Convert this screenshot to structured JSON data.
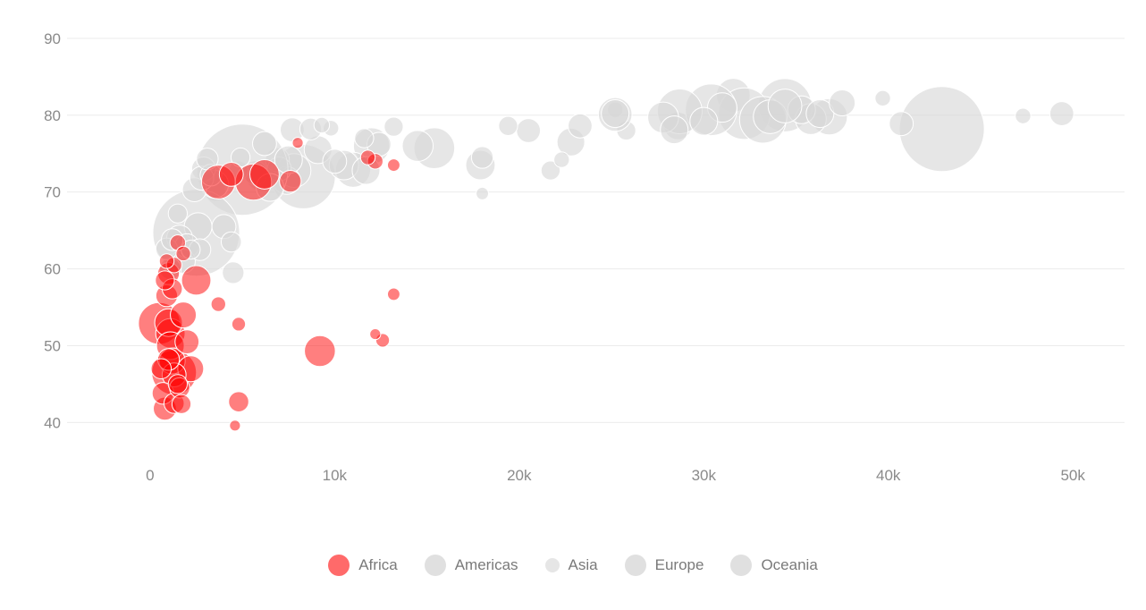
{
  "chart_data": {
    "type": "scatter",
    "x_ticks": [
      0,
      10000,
      20000,
      30000,
      40000,
      50000
    ],
    "x_tick_labels": [
      "0",
      "10k",
      "20k",
      "30k",
      "40k",
      "50k"
    ],
    "y_ticks": [
      40,
      50,
      60,
      70,
      80,
      90
    ],
    "y_tick_labels": [
      "40",
      "50",
      "60",
      "70",
      "80",
      "90"
    ],
    "xlim": [
      -4500,
      52800
    ],
    "ylim": [
      36.2,
      91.5
    ],
    "grid": true,
    "legend_position": "bottom",
    "series": [
      {
        "name": "Africa",
        "color": "#ff0000",
        "points": [
          [
            1300,
            46.5,
            1.0
          ],
          [
            500,
            52.9,
            0.85
          ],
          [
            1100,
            51.6,
            0.35
          ],
          [
            1000,
            53.0,
            0.3
          ],
          [
            1800,
            54.0,
            0.25
          ],
          [
            2500,
            58.5,
            0.35
          ],
          [
            1000,
            59.4,
            0.15
          ],
          [
            900,
            56.5,
            0.15
          ],
          [
            1200,
            57.4,
            0.12
          ],
          [
            800,
            58.5,
            0.1
          ],
          [
            1100,
            50.0,
            0.3
          ],
          [
            1200,
            48.0,
            0.25
          ],
          [
            1300,
            46.2,
            0.2
          ],
          [
            1000,
            48.2,
            0.15
          ],
          [
            700,
            43.8,
            0.15
          ],
          [
            1300,
            42.5,
            0.12
          ],
          [
            800,
            41.8,
            0.18
          ],
          [
            1600,
            44.5,
            0.12
          ],
          [
            600,
            47.0,
            0.12
          ],
          [
            1500,
            45.0,
            0.1
          ],
          [
            1700,
            42.4,
            0.1
          ],
          [
            4800,
            42.7,
            0.12
          ],
          [
            9200,
            49.3,
            0.4
          ],
          [
            3700,
            55.4,
            0.04
          ],
          [
            4800,
            52.8,
            0.03
          ],
          [
            12600,
            50.7,
            0.03
          ],
          [
            12200,
            51.5,
            0.01
          ],
          [
            13200,
            56.7,
            0.02
          ],
          [
            4600,
            39.6,
            0.01
          ],
          [
            5600,
            71.3,
            0.6
          ],
          [
            6200,
            72.3,
            0.35
          ],
          [
            3700,
            71.3,
            0.5
          ],
          [
            4400,
            72.3,
            0.2
          ],
          [
            7600,
            71.4,
            0.15
          ],
          [
            8000,
            76.4,
            0.01
          ],
          [
            12200,
            74.0,
            0.05
          ],
          [
            11800,
            74.5,
            0.04
          ],
          [
            13200,
            73.5,
            0.02
          ],
          [
            1500,
            63.4,
            0.05
          ],
          [
            1300,
            60.5,
            0.05
          ],
          [
            1800,
            62.0,
            0.04
          ],
          [
            900,
            61.0,
            0.04
          ],
          [
            2000,
            50.5,
            0.2
          ],
          [
            2200,
            47.0,
            0.25
          ]
        ]
      },
      {
        "name": "Americas",
        "color": "#d7d7d7",
        "points": [
          [
            42900,
            78.2,
            4.3
          ],
          [
            8300,
            72.0,
            2.3
          ],
          [
            12000,
            76.0,
            0.6
          ],
          [
            11000,
            72.9,
            0.55
          ],
          [
            7800,
            72.8,
            0.5
          ],
          [
            6000,
            72.2,
            0.4
          ],
          [
            9100,
            75.5,
            0.3
          ],
          [
            10500,
            73.5,
            0.35
          ],
          [
            13200,
            78.5,
            0.1
          ],
          [
            5700,
            72.5,
            0.2
          ],
          [
            7400,
            71.5,
            0.3
          ],
          [
            6900,
            74.2,
            0.2
          ],
          [
            3500,
            70.2,
            0.15
          ],
          [
            11700,
            72.8,
            0.3
          ],
          [
            7000,
            73.0,
            0.2
          ],
          [
            18000,
            69.8,
            0.02
          ],
          [
            9800,
            78.3,
            0.05
          ],
          [
            4800,
            72.8,
            0.1
          ]
        ]
      },
      {
        "name": "Asia",
        "color": "#d7d7d7",
        "points": [
          [
            5000,
            72.9,
            5.0
          ],
          [
            2500,
            64.7,
            4.5
          ],
          [
            31600,
            82.6,
            0.5
          ],
          [
            28600,
            78.6,
            0.3
          ],
          [
            47300,
            79.9,
            0.05
          ],
          [
            39700,
            82.2,
            0.05
          ],
          [
            22300,
            74.2,
            0.05
          ],
          [
            21700,
            72.8,
            0.1
          ],
          [
            12400,
            76.2,
            0.2
          ],
          [
            7500,
            74.2,
            0.3
          ],
          [
            2600,
            65.5,
            0.3
          ],
          [
            3500,
            71.0,
            0.3
          ],
          [
            1600,
            64.0,
            0.25
          ],
          [
            2000,
            63.0,
            0.2
          ],
          [
            4500,
            59.5,
            0.15
          ],
          [
            1100,
            60.0,
            0.15
          ],
          [
            6200,
            76.3,
            0.2
          ],
          [
            9300,
            78.7,
            0.05
          ],
          [
            3300,
            72.2,
            0.15
          ],
          [
            2900,
            73.0,
            0.2
          ],
          [
            4900,
            74.5,
            0.1
          ],
          [
            1500,
            67.2,
            0.1
          ],
          [
            900,
            62.6,
            0.15
          ],
          [
            2200,
            62.5,
            0.1
          ],
          [
            11600,
            77.0,
            0.1
          ],
          [
            19400,
            78.6,
            0.1
          ],
          [
            8700,
            78.2,
            0.15
          ],
          [
            25200,
            80.7,
            0.05
          ],
          [
            3100,
            74.3,
            0.15
          ],
          [
            2400,
            70.3,
            0.2
          ],
          [
            10000,
            74.0,
            0.2
          ],
          [
            20500,
            78.0,
            0.2
          ],
          [
            18000,
            74.5,
            0.15
          ],
          [
            7700,
            78.1,
            0.2
          ],
          [
            22800,
            76.5,
            0.3
          ],
          [
            23300,
            78.6,
            0.2
          ],
          [
            25800,
            78.0,
            0.1
          ],
          [
            14500,
            76.0,
            0.4
          ],
          [
            17900,
            73.5,
            0.35
          ],
          [
            15400,
            75.7,
            0.8
          ],
          [
            6500,
            70.6,
            0.3
          ],
          [
            2800,
            71.8,
            0.2
          ],
          [
            4000,
            65.5,
            0.2
          ],
          [
            1800,
            61.0,
            0.2
          ],
          [
            1200,
            63.8,
            0.15
          ],
          [
            2700,
            62.5,
            0.15
          ],
          [
            4400,
            63.5,
            0.12
          ]
        ]
      },
      {
        "name": "Europe",
        "color": "#d7d7d7",
        "points": [
          [
            32200,
            80.2,
            1.4
          ],
          [
            34400,
            81.3,
            1.5
          ],
          [
            30400,
            80.7,
            1.4
          ],
          [
            28700,
            80.5,
            1.0
          ],
          [
            33200,
            79.4,
            1.1
          ],
          [
            36800,
            79.8,
            0.6
          ],
          [
            35300,
            80.7,
            0.3
          ],
          [
            36300,
            80.2,
            0.3
          ],
          [
            37500,
            81.6,
            0.25
          ],
          [
            25200,
            80.1,
            0.5
          ],
          [
            27800,
            79.7,
            0.4
          ],
          [
            49400,
            80.2,
            0.2
          ],
          [
            40700,
            78.9,
            0.2
          ],
          [
            28400,
            78.1,
            0.3
          ],
          [
            30000,
            79.2,
            0.3
          ],
          [
            33600,
            79.8,
            0.5
          ],
          [
            35800,
            79.5,
            0.4
          ],
          [
            31000,
            81.0,
            0.35
          ]
        ]
      },
      {
        "name": "Oceania",
        "color": "#d7d7d7",
        "points": [
          [
            34400,
            81.2,
            0.5
          ],
          [
            25200,
            80.2,
            0.3
          ]
        ]
      }
    ]
  },
  "legend": {
    "items": [
      {
        "label": "Africa",
        "color": "#ff6a6a"
      },
      {
        "label": "Americas",
        "color": "#e0e0e0"
      },
      {
        "label": "Asia",
        "color": "#e6e6e6"
      },
      {
        "label": "Europe",
        "color": "#e0e0e0"
      },
      {
        "label": "Oceania",
        "color": "#e0e0e0"
      }
    ]
  }
}
